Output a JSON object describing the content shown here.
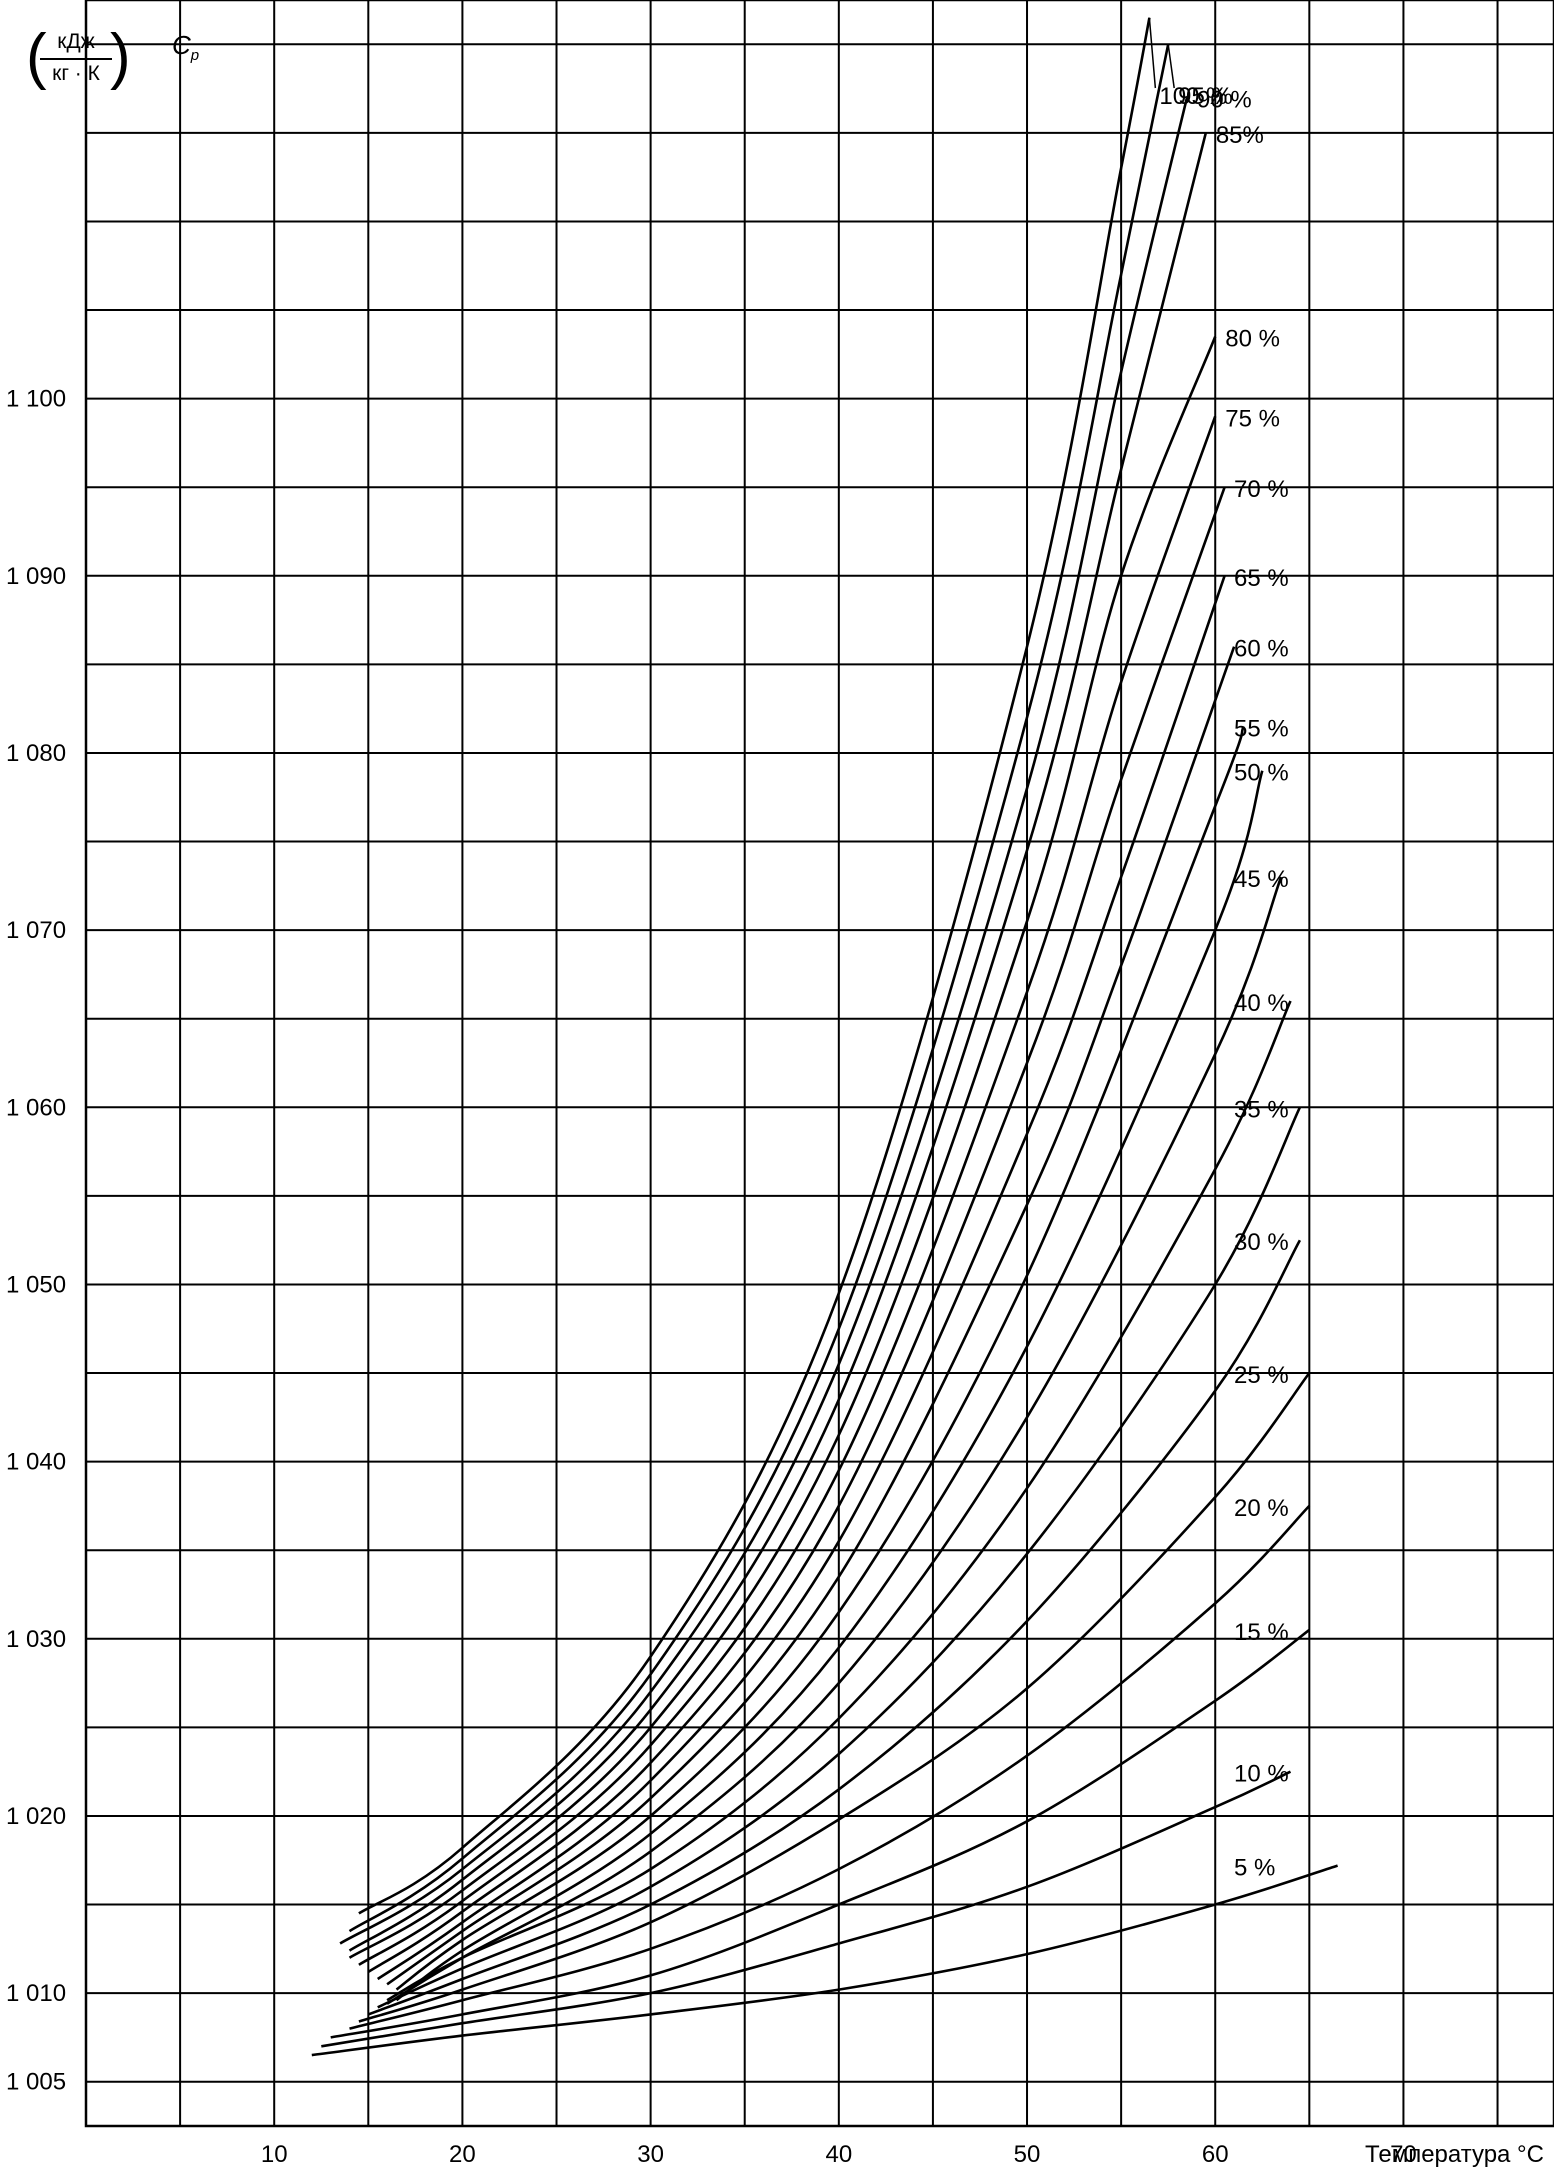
{
  "y_unit": {
    "numerator": "кДж",
    "denominator": "кг · К"
  },
  "y_symbol": {
    "main": "C",
    "sub": "p"
  },
  "chart_data": {
    "type": "line",
    "xlabel": "Температура °C",
    "ylabel": "Cp (кДж / кг · К)",
    "xlim": [
      0,
      78
    ],
    "ylim": [
      1002.5,
      1122.5
    ],
    "x_ticks": [
      10,
      20,
      30,
      40,
      50,
      60,
      70
    ],
    "x_tick_labels": [
      "10",
      "20",
      "30",
      "40",
      "50",
      "60",
      "70"
    ],
    "y_ticks": [
      1005,
      1010,
      1020,
      1030,
      1040,
      1050,
      1060,
      1070,
      1080,
      1090,
      1100
    ],
    "y_tick_labels": [
      "1 005",
      "1 010",
      "1 020",
      "1 030",
      "1 040",
      "1 050",
      "1 060",
      "1 070",
      "1 080",
      "1 090",
      "1 100"
    ],
    "grid": {
      "x_step": 5,
      "y_step": 5
    },
    "series": [
      {
        "name": "5 %",
        "x": [
          12,
          20,
          30,
          40,
          50,
          60,
          66.5
        ],
        "y": [
          1006.5,
          1007.6,
          1008.8,
          1010.2,
          1012.2,
          1015.0,
          1017.2
        ]
      },
      {
        "name": "10 %",
        "x": [
          12.5,
          20,
          30,
          40,
          50,
          60,
          64
        ],
        "y": [
          1007.0,
          1008.3,
          1010.0,
          1012.8,
          1016.0,
          1020.5,
          1022.5
        ]
      },
      {
        "name": "15 %",
        "x": [
          13,
          20,
          30,
          40,
          50,
          60,
          65
        ],
        "y": [
          1007.5,
          1008.8,
          1011.0,
          1015.0,
          1019.7,
          1026.5,
          1030.5
        ]
      },
      {
        "name": "20 %",
        "x": [
          14,
          20,
          30,
          40,
          50,
          60,
          65
        ],
        "y": [
          1008.0,
          1009.6,
          1012.5,
          1017.0,
          1023.4,
          1032.0,
          1037.5
        ]
      },
      {
        "name": "25 %",
        "x": [
          14.5,
          20,
          30,
          40,
          50,
          60,
          65
        ],
        "y": [
          1008.4,
          1010.2,
          1014.0,
          1019.8,
          1027.2,
          1038.0,
          1045.0
        ]
      },
      {
        "name": "30 %",
        "x": [
          15,
          20,
          30,
          40,
          50,
          60,
          64.5
        ],
        "y": [
          1008.8,
          1010.8,
          1015.0,
          1021.5,
          1031.0,
          1044.0,
          1052.5
        ]
      },
      {
        "name": "35 %",
        "x": [
          15.5,
          20,
          30,
          40,
          50,
          60,
          64.5
        ],
        "y": [
          1009.2,
          1011.4,
          1016.0,
          1023.5,
          1034.8,
          1050.0,
          1060.0
        ]
      },
      {
        "name": "40 %",
        "x": [
          16,
          20,
          30,
          40,
          50,
          60,
          64
        ],
        "y": [
          1009.6,
          1012.0,
          1017.0,
          1025.5,
          1038.5,
          1056.5,
          1066.0
        ]
      },
      {
        "name": "45 %",
        "x": [
          16,
          20,
          30,
          40,
          50,
          60,
          63.5
        ],
        "y": [
          1009.4,
          1012.0,
          1018.0,
          1027.5,
          1042.5,
          1063.0,
          1073.0
        ]
      },
      {
        "name": "50 %",
        "x": [
          16.5,
          20,
          30,
          40,
          50,
          60,
          62.5
        ],
        "y": [
          1009.6,
          1012.4,
          1019.0,
          1029.5,
          1046.5,
          1070.0,
          1079.0
        ]
      },
      {
        "name": "55 %",
        "x": [
          16.5,
          20,
          30,
          40,
          50,
          60,
          61.5
        ],
        "y": [
          1010.2,
          1013.0,
          1020.0,
          1031.5,
          1050.5,
          1077.0,
          1081.5
        ]
      },
      {
        "name": "60 %",
        "x": [
          16,
          20,
          30,
          40,
          50,
          55,
          61
        ],
        "y": [
          1010.5,
          1013.5,
          1021.0,
          1033.5,
          1054.5,
          1068.0,
          1086.0
        ]
      },
      {
        "name": "65 %",
        "x": [
          15.5,
          20,
          30,
          40,
          50,
          55,
          60.5
        ],
        "y": [
          1010.8,
          1014.0,
          1022.0,
          1035.5,
          1058.5,
          1073.0,
          1090.0
        ]
      },
      {
        "name": "70 %",
        "x": [
          15,
          20,
          30,
          40,
          50,
          55,
          60.5
        ],
        "y": [
          1011.2,
          1014.6,
          1023.0,
          1037.5,
          1062.5,
          1078.5,
          1095.0
        ]
      },
      {
        "name": "75 %",
        "x": [
          14.5,
          20,
          30,
          40,
          50,
          55,
          60
        ],
        "y": [
          1011.6,
          1015.2,
          1024.0,
          1039.5,
          1066.5,
          1084.0,
          1099.0
        ]
      },
      {
        "name": "80 %",
        "x": [
          14,
          20,
          30,
          40,
          50,
          55,
          60
        ],
        "y": [
          1012.0,
          1015.8,
          1025.0,
          1041.5,
          1070.5,
          1090.0,
          1103.5
        ]
      },
      {
        "name": "85%",
        "x": [
          14,
          20,
          30,
          40,
          50,
          55,
          59.5
        ],
        "y": [
          1012.4,
          1016.4,
          1026.0,
          1043.5,
          1074.5,
          1096.0,
          1115.0
        ]
      },
      {
        "name": "90 %",
        "x": [
          13.5,
          20,
          30,
          40,
          50,
          55,
          58.5
        ],
        "y": [
          1012.8,
          1017.0,
          1027.0,
          1045.5,
          1078.0,
          1101.5,
          1117.0
        ]
      },
      {
        "name": "95 %",
        "x": [
          14,
          20,
          30,
          40,
          50,
          55,
          57.5
        ],
        "y": [
          1013.5,
          1017.6,
          1028.0,
          1047.5,
          1082.0,
          1107.0,
          1120.0
        ]
      },
      {
        "name": "100 %",
        "x": [
          14.5,
          20,
          30,
          40,
          50,
          55,
          56.5
        ],
        "y": [
          1014.5,
          1018.2,
          1029.0,
          1049.5,
          1086.0,
          1113.0,
          1121.5
        ]
      }
    ]
  }
}
